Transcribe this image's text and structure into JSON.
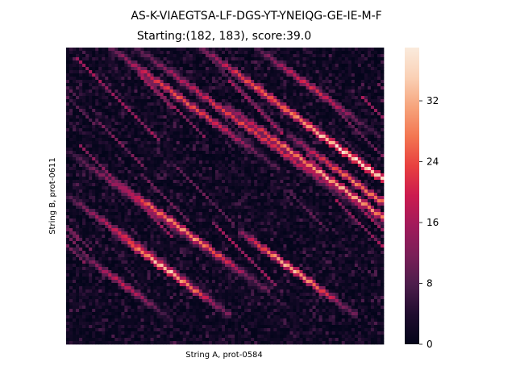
{
  "chart_data": {
    "type": "heatmap",
    "title": "AS-K-VIAEGTSA-LF-DGS-YT-YNEIQG-GE-IE-M-F",
    "subtitle": "Starting:(182, 183), score:39.0",
    "xlabel": "String A, prot-0584",
    "ylabel": "String B, prot-0611",
    "x_ticks": [],
    "y_ticks": [],
    "colorbar": {
      "colormap": "rocket",
      "range": [
        0,
        39
      ],
      "ticks": [
        0,
        8,
        16,
        24,
        32
      ]
    },
    "grid": false,
    "matrix_size": [
      185,
      175
    ],
    "start_cell": [
      182,
      183
    ],
    "score": 39.0,
    "colors": {
      "stops": [
        "#03051a",
        "#1f0c2e",
        "#4c1d4b",
        "#7a1f58",
        "#a11a5b",
        "#cb1b4f",
        "#e83f3f",
        "#f37651",
        "#f6a47c",
        "#fad1b6",
        "#faebdd"
      ]
    },
    "diagonal_bands": [
      {
        "row_start": 0.0,
        "col_start": 0.14,
        "peak": 26,
        "extent": 0.55
      },
      {
        "row_start": 0.0,
        "col_start": 0.42,
        "peak": 28,
        "extent": 0.5
      },
      {
        "row_start": 0.0,
        "col_start": 0.6,
        "peak": 22,
        "extent": 0.4
      },
      {
        "row_start": 0.0,
        "col_start": 0.22,
        "peak": 24,
        "extent": 0.8
      },
      {
        "row_start": 0.1,
        "col_start": 0.55,
        "peak": 39,
        "extent": 0.9
      },
      {
        "row_start": 0.2,
        "col_start": 0.5,
        "peak": 34,
        "extent": 0.8
      },
      {
        "row_start": 0.3,
        "col_start": 0.7,
        "peak": 30,
        "extent": 0.6
      },
      {
        "row_start": 0.45,
        "col_start": 0.15,
        "peak": 32,
        "extent": 0.5
      },
      {
        "row_start": 0.5,
        "col_start": 0.0,
        "peak": 22,
        "extent": 0.5
      },
      {
        "row_start": 0.62,
        "col_start": 0.15,
        "peak": 36,
        "extent": 0.38
      },
      {
        "row_start": 0.62,
        "col_start": 0.55,
        "peak": 34,
        "extent": 0.38
      },
      {
        "row_start": 0.7,
        "col_start": 0.05,
        "peak": 20,
        "extent": 0.3
      },
      {
        "row_start": 0.35,
        "col_start": 0.0,
        "peak": 18,
        "extent": 0.6
      }
    ]
  }
}
